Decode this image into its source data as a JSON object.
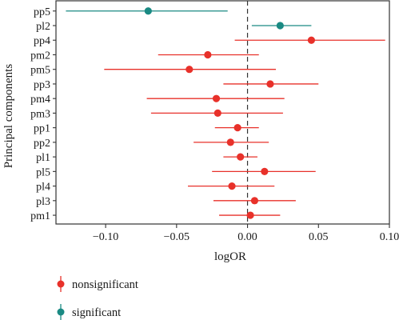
{
  "chart_data": {
    "type": "scatter",
    "subtype": "forest-plot",
    "xlabel": "logOR",
    "ylabel": "Principal components",
    "xlim": [
      -0.135,
      0.1
    ],
    "xticks": [
      -0.1,
      -0.05,
      0.0,
      0.05,
      0.1
    ],
    "xtick_labels": [
      "−0.10",
      "−0.05",
      "0.00",
      "0.05",
      "0.10"
    ],
    "reference_line": 0,
    "grid": false,
    "legend_position": "bottom-left",
    "groups": [
      {
        "name": "nonsignificant",
        "color": "#e8312a"
      },
      {
        "name": "significant",
        "color": "#1a8a83"
      }
    ],
    "rows": [
      {
        "label": "pp5",
        "estimate": -0.07,
        "lower": -0.128,
        "upper": -0.014,
        "group": "significant"
      },
      {
        "label": "pl2",
        "estimate": 0.023,
        "lower": 0.003,
        "upper": 0.045,
        "group": "significant"
      },
      {
        "label": "pp4",
        "estimate": 0.045,
        "lower": -0.009,
        "upper": 0.097,
        "group": "nonsignificant"
      },
      {
        "label": "pm2",
        "estimate": -0.028,
        "lower": -0.063,
        "upper": 0.008,
        "group": "nonsignificant"
      },
      {
        "label": "pm5",
        "estimate": -0.041,
        "lower": -0.101,
        "upper": 0.02,
        "group": "nonsignificant"
      },
      {
        "label": "pp3",
        "estimate": 0.016,
        "lower": -0.017,
        "upper": 0.05,
        "group": "nonsignificant"
      },
      {
        "label": "pm4",
        "estimate": -0.022,
        "lower": -0.071,
        "upper": 0.026,
        "group": "nonsignificant"
      },
      {
        "label": "pm3",
        "estimate": -0.021,
        "lower": -0.068,
        "upper": 0.025,
        "group": "nonsignificant"
      },
      {
        "label": "pp1",
        "estimate": -0.007,
        "lower": -0.023,
        "upper": 0.008,
        "group": "nonsignificant"
      },
      {
        "label": "pp2",
        "estimate": -0.012,
        "lower": -0.038,
        "upper": 0.015,
        "group": "nonsignificant"
      },
      {
        "label": "pl1",
        "estimate": -0.005,
        "lower": -0.017,
        "upper": 0.007,
        "group": "nonsignificant"
      },
      {
        "label": "pl5",
        "estimate": 0.012,
        "lower": -0.025,
        "upper": 0.048,
        "group": "nonsignificant"
      },
      {
        "label": "pl4",
        "estimate": -0.011,
        "lower": -0.042,
        "upper": 0.019,
        "group": "nonsignificant"
      },
      {
        "label": "pl3",
        "estimate": 0.005,
        "lower": -0.024,
        "upper": 0.034,
        "group": "nonsignificant"
      },
      {
        "label": "pm1",
        "estimate": 0.002,
        "lower": -0.02,
        "upper": 0.023,
        "group": "nonsignificant"
      }
    ]
  }
}
